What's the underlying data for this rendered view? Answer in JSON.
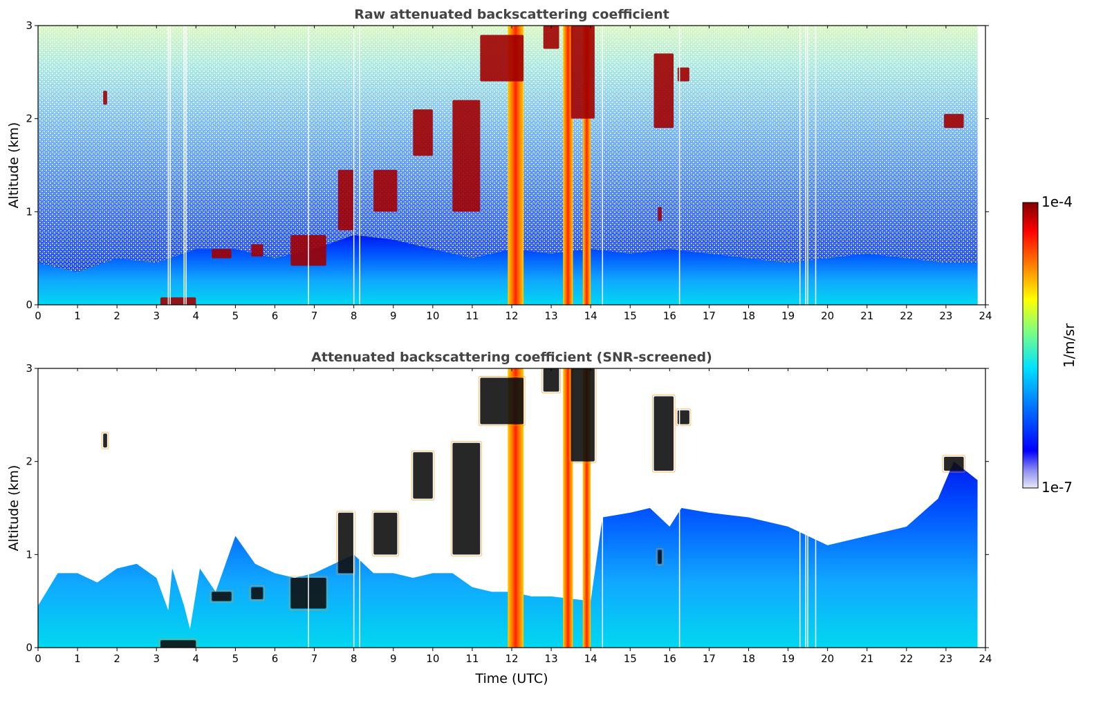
{
  "chart_data": [
    {
      "type": "heatmap",
      "title": "Raw attenuated backscattering coefficient",
      "xlabel": "",
      "ylabel": "Altitude (km)",
      "xlim": [
        0,
        24
      ],
      "ylim": [
        0,
        3
      ],
      "xticks": [
        "0",
        "1",
        "2",
        "3",
        "4",
        "5",
        "6",
        "7",
        "8",
        "9",
        "10",
        "11",
        "12",
        "13",
        "14",
        "15",
        "16",
        "17",
        "18",
        "19",
        "20",
        "21",
        "22",
        "23",
        "24"
      ],
      "yticks": [
        "0",
        "1",
        "2",
        "3"
      ],
      "boundary_layer_top_km": [
        [
          0,
          0.45
        ],
        [
          1,
          0.35
        ],
        [
          2,
          0.5
        ],
        [
          3,
          0.45
        ],
        [
          4,
          0.6
        ],
        [
          5,
          0.6
        ],
        [
          6,
          0.5
        ],
        [
          7,
          0.6
        ],
        [
          8,
          0.75
        ],
        [
          9,
          0.7
        ],
        [
          10,
          0.6
        ],
        [
          11,
          0.5
        ],
        [
          12,
          0.6
        ],
        [
          13,
          0.55
        ],
        [
          14,
          0.6
        ],
        [
          15,
          0.55
        ],
        [
          16,
          0.6
        ],
        [
          17,
          0.55
        ],
        [
          18,
          0.5
        ],
        [
          19,
          0.45
        ],
        [
          20,
          0.5
        ],
        [
          21,
          0.55
        ],
        [
          22,
          0.5
        ],
        [
          23,
          0.45
        ],
        [
          23.8,
          0.45
        ]
      ],
      "cloud_features": [
        {
          "t0": 1.65,
          "t1": 1.75,
          "z0": 2.15,
          "z1": 2.3
        },
        {
          "t0": 3.1,
          "t1": 4.0,
          "z0": 0.0,
          "z1": 0.08
        },
        {
          "t0": 4.4,
          "t1": 4.9,
          "z0": 0.5,
          "z1": 0.6
        },
        {
          "t0": 5.4,
          "t1": 5.7,
          "z0": 0.52,
          "z1": 0.65
        },
        {
          "t0": 6.4,
          "t1": 7.3,
          "z0": 0.42,
          "z1": 0.75
        },
        {
          "t0": 7.6,
          "t1": 8.0,
          "z0": 0.8,
          "z1": 1.45
        },
        {
          "t0": 8.5,
          "t1": 9.1,
          "z0": 1.0,
          "z1": 1.45
        },
        {
          "t0": 9.5,
          "t1": 10.0,
          "z0": 1.6,
          "z1": 2.1
        },
        {
          "t0": 10.5,
          "t1": 11.2,
          "z0": 1.0,
          "z1": 2.2
        },
        {
          "t0": 11.2,
          "t1": 12.3,
          "z0": 2.4,
          "z1": 2.9
        },
        {
          "t0": 12.8,
          "t1": 13.2,
          "z0": 2.75,
          "z1": 3.0
        },
        {
          "t0": 13.5,
          "t1": 14.1,
          "z0": 2.0,
          "z1": 3.0
        },
        {
          "t0": 15.6,
          "t1": 16.1,
          "z0": 1.9,
          "z1": 2.7
        },
        {
          "t0": 16.2,
          "t1": 16.5,
          "z0": 2.4,
          "z1": 2.55
        },
        {
          "t0": 15.7,
          "t1": 15.8,
          "z0": 0.9,
          "z1": 1.05
        },
        {
          "t0": 22.95,
          "t1": 23.45,
          "z0": 1.9,
          "z1": 2.05
        }
      ],
      "precip_columns": [
        {
          "t0": 11.9,
          "t1": 12.3
        },
        {
          "t0": 13.3,
          "t1": 13.55
        },
        {
          "t0": 13.8,
          "t1": 14.0
        }
      ],
      "data_gaps": [
        3.3,
        3.35,
        3.7,
        3.75,
        6.85,
        8.0,
        8.15,
        14.3,
        16.25,
        19.3,
        19.45,
        19.5,
        19.7
      ]
    },
    {
      "type": "heatmap",
      "title": "Attenuated backscattering coefficient (SNR-screened)",
      "xlabel": "Time (UTC)",
      "ylabel": "Altitude (km)",
      "xlim": [
        0,
        24
      ],
      "ylim": [
        0,
        3
      ],
      "xticks": [
        "0",
        "1",
        "2",
        "3",
        "4",
        "5",
        "6",
        "7",
        "8",
        "9",
        "10",
        "11",
        "12",
        "13",
        "14",
        "15",
        "16",
        "17",
        "18",
        "19",
        "20",
        "21",
        "22",
        "23",
        "24"
      ],
      "yticks": [
        "0",
        "1",
        "2",
        "3"
      ],
      "screened_layer_top_km": [
        [
          0,
          0.45
        ],
        [
          0.5,
          0.8
        ],
        [
          1,
          0.8
        ],
        [
          1.5,
          0.7
        ],
        [
          2,
          0.85
        ],
        [
          2.5,
          0.9
        ],
        [
          3,
          0.75
        ],
        [
          3.3,
          0.4
        ],
        [
          3.4,
          0.85
        ],
        [
          3.7,
          0.45
        ],
        [
          3.85,
          0.2
        ],
        [
          4.1,
          0.85
        ],
        [
          4.5,
          0.6
        ],
        [
          5,
          1.2
        ],
        [
          5.5,
          0.9
        ],
        [
          6,
          0.8
        ],
        [
          6.5,
          0.75
        ],
        [
          7,
          0.8
        ],
        [
          7.5,
          0.9
        ],
        [
          8,
          1.0
        ],
        [
          8.5,
          0.8
        ],
        [
          9,
          0.8
        ],
        [
          9.5,
          0.75
        ],
        [
          10,
          0.8
        ],
        [
          10.5,
          0.8
        ],
        [
          11,
          0.65
        ],
        [
          11.5,
          0.6
        ],
        [
          12,
          0.6
        ],
        [
          12.5,
          0.55
        ],
        [
          13,
          0.55
        ],
        [
          14,
          0.5
        ],
        [
          14.3,
          1.4
        ],
        [
          15,
          1.45
        ],
        [
          15.5,
          1.5
        ],
        [
          16,
          1.3
        ],
        [
          16.3,
          1.5
        ],
        [
          17,
          1.45
        ],
        [
          18,
          1.4
        ],
        [
          19,
          1.3
        ],
        [
          19.5,
          1.2
        ],
        [
          20,
          1.1
        ],
        [
          21,
          1.2
        ],
        [
          22,
          1.3
        ],
        [
          22.8,
          1.6
        ],
        [
          23.2,
          2.0
        ],
        [
          23.8,
          1.8
        ]
      ],
      "cloud_features": [
        {
          "t0": 1.65,
          "t1": 1.75,
          "z0": 2.15,
          "z1": 2.3
        },
        {
          "t0": 3.1,
          "t1": 4.0,
          "z0": 0.0,
          "z1": 0.08
        },
        {
          "t0": 4.4,
          "t1": 4.9,
          "z0": 0.5,
          "z1": 0.6
        },
        {
          "t0": 5.4,
          "t1": 5.7,
          "z0": 0.52,
          "z1": 0.65
        },
        {
          "t0": 6.4,
          "t1": 7.3,
          "z0": 0.42,
          "z1": 0.75
        },
        {
          "t0": 7.6,
          "t1": 8.0,
          "z0": 0.8,
          "z1": 1.45
        },
        {
          "t0": 8.5,
          "t1": 9.1,
          "z0": 1.0,
          "z1": 1.45
        },
        {
          "t0": 9.5,
          "t1": 10.0,
          "z0": 1.6,
          "z1": 2.1
        },
        {
          "t0": 10.5,
          "t1": 11.2,
          "z0": 1.0,
          "z1": 2.2
        },
        {
          "t0": 11.2,
          "t1": 12.3,
          "z0": 2.4,
          "z1": 2.9
        },
        {
          "t0": 12.8,
          "t1": 13.2,
          "z0": 2.75,
          "z1": 3.0
        },
        {
          "t0": 13.5,
          "t1": 14.1,
          "z0": 2.0,
          "z1": 3.0
        },
        {
          "t0": 15.6,
          "t1": 16.1,
          "z0": 1.9,
          "z1": 2.7
        },
        {
          "t0": 16.2,
          "t1": 16.5,
          "z0": 2.4,
          "z1": 2.55
        },
        {
          "t0": 15.7,
          "t1": 15.8,
          "z0": 0.9,
          "z1": 1.05
        },
        {
          "t0": 22.95,
          "t1": 23.45,
          "z0": 1.9,
          "z1": 2.05
        }
      ],
      "precip_columns": [
        {
          "t0": 11.9,
          "t1": 12.3
        },
        {
          "t0": 13.3,
          "t1": 13.55
        },
        {
          "t0": 13.8,
          "t1": 14.0
        }
      ],
      "data_gaps": [
        6.85,
        8.0,
        8.15,
        14.3,
        16.25,
        19.3,
        19.45,
        19.5,
        19.7
      ]
    }
  ],
  "colorbar": {
    "max_label": "1e-4",
    "min_label": "1e-7",
    "unit_label": "1/m/sr",
    "colormap": "jet",
    "colors": [
      "#e8e8f8",
      "#9090f0",
      "#0000ff",
      "#0080ff",
      "#00e0ff",
      "#80ff80",
      "#ffff00",
      "#ff8000",
      "#ff0000",
      "#800000"
    ]
  }
}
